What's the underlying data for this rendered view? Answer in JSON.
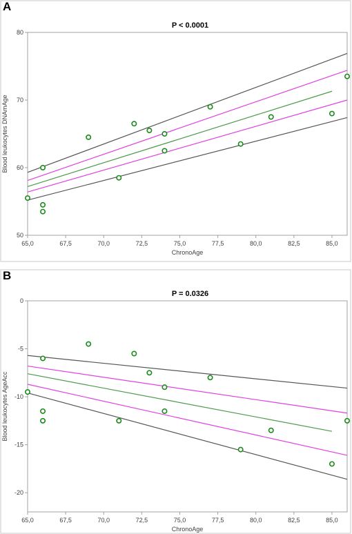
{
  "chart_data": [
    {
      "panel_label": "A",
      "type": "scatter",
      "title": "P < 0.0001",
      "xlabel": "ChronoAge",
      "ylabel": "Blood leukocytes DNAmAge",
      "xlim": [
        65,
        86
      ],
      "ylim": [
        50,
        80
      ],
      "xticks": [
        65,
        67.5,
        70,
        72.5,
        75,
        77.5,
        80,
        82.5,
        85
      ],
      "xtick_labels": [
        "65,0",
        "67,5",
        "70,0",
        "72,5",
        "75,0",
        "77,5",
        "80,0",
        "82,5",
        "85,0"
      ],
      "yticks": [
        50,
        60,
        70,
        80
      ],
      "ytick_labels": [
        "50",
        "60",
        "70",
        "80"
      ],
      "grid": false,
      "points": [
        {
          "x": 65.0,
          "y": 55.5
        },
        {
          "x": 66.0,
          "y": 60.0
        },
        {
          "x": 66.0,
          "y": 54.5
        },
        {
          "x": 66.0,
          "y": 53.5
        },
        {
          "x": 69.0,
          "y": 64.5
        },
        {
          "x": 71.0,
          "y": 58.5
        },
        {
          "x": 72.0,
          "y": 66.5
        },
        {
          "x": 73.0,
          "y": 65.5
        },
        {
          "x": 74.0,
          "y": 65.0
        },
        {
          "x": 74.0,
          "y": 62.5
        },
        {
          "x": 77.0,
          "y": 69.0
        },
        {
          "x": 79.0,
          "y": 63.5
        },
        {
          "x": 81.0,
          "y": 67.5
        },
        {
          "x": 85.0,
          "y": 68.0
        },
        {
          "x": 86.0,
          "y": 73.5
        }
      ],
      "lines": [
        {
          "role": "regression",
          "color": "#4a9a4a",
          "x": [
            65,
            85
          ],
          "y": [
            57.2,
            71.3
          ]
        },
        {
          "role": "upper-inner",
          "color": "#e040e0",
          "x": [
            65,
            86
          ],
          "y": [
            58.1,
            74.4
          ]
        },
        {
          "role": "lower-inner",
          "color": "#e040e0",
          "x": [
            65,
            86
          ],
          "y": [
            56.4,
            70.0
          ]
        },
        {
          "role": "upper-outer",
          "color": "#555555",
          "x": [
            65,
            86
          ],
          "y": [
            59.3,
            76.9
          ]
        },
        {
          "role": "lower-outer",
          "color": "#555555",
          "x": [
            65,
            86
          ],
          "y": [
            55.2,
            67.4
          ]
        }
      ]
    },
    {
      "panel_label": "B",
      "type": "scatter",
      "title": "P = 0.0326",
      "xlabel": "ChronoAge",
      "ylabel": "Blood leukocytes AgeAcc",
      "xlim": [
        65,
        86
      ],
      "ylim": [
        -22,
        0
      ],
      "xticks": [
        65,
        67.5,
        70,
        72.5,
        75,
        77.5,
        80,
        82.5,
        85
      ],
      "xtick_labels": [
        "65,0",
        "67,5",
        "70,0",
        "72,5",
        "75,0",
        "77,5",
        "80,0",
        "82,5",
        "85,0"
      ],
      "yticks": [
        -20,
        -15,
        -10,
        -5,
        0
      ],
      "ytick_labels": [
        "-20",
        "-15",
        "-10",
        "-5",
        "0"
      ],
      "grid": false,
      "points": [
        {
          "x": 65.0,
          "y": -9.5
        },
        {
          "x": 66.0,
          "y": -6.0
        },
        {
          "x": 66.0,
          "y": -11.5
        },
        {
          "x": 66.0,
          "y": -12.5
        },
        {
          "x": 69.0,
          "y": -4.5
        },
        {
          "x": 71.0,
          "y": -12.5
        },
        {
          "x": 72.0,
          "y": -5.5
        },
        {
          "x": 73.0,
          "y": -7.5
        },
        {
          "x": 74.0,
          "y": -9.0
        },
        {
          "x": 74.0,
          "y": -11.5
        },
        {
          "x": 77.0,
          "y": -8.0
        },
        {
          "x": 79.0,
          "y": -15.5
        },
        {
          "x": 81.0,
          "y": -13.5
        },
        {
          "x": 85.0,
          "y": -17.0
        },
        {
          "x": 86.0,
          "y": -12.5
        }
      ],
      "lines": [
        {
          "role": "regression",
          "color": "#4a9a4a",
          "x": [
            65,
            85
          ],
          "y": [
            -7.6,
            -13.6
          ]
        },
        {
          "role": "upper-inner",
          "color": "#e040e0",
          "x": [
            65,
            86
          ],
          "y": [
            -6.8,
            -11.7
          ]
        },
        {
          "role": "lower-inner",
          "color": "#e040e0",
          "x": [
            65,
            86
          ],
          "y": [
            -8.7,
            -16.1
          ]
        },
        {
          "role": "upper-outer",
          "color": "#555555",
          "x": [
            65,
            86
          ],
          "y": [
            -5.7,
            -9.1
          ]
        },
        {
          "role": "lower-outer",
          "color": "#555555",
          "x": [
            65,
            86
          ],
          "y": [
            -9.6,
            -18.6
          ]
        }
      ]
    }
  ],
  "colors": {
    "point_stroke": "#1a8a1a",
    "axis": "#a0a0a0",
    "tick_text": "#404040",
    "title_text": "#000000"
  }
}
